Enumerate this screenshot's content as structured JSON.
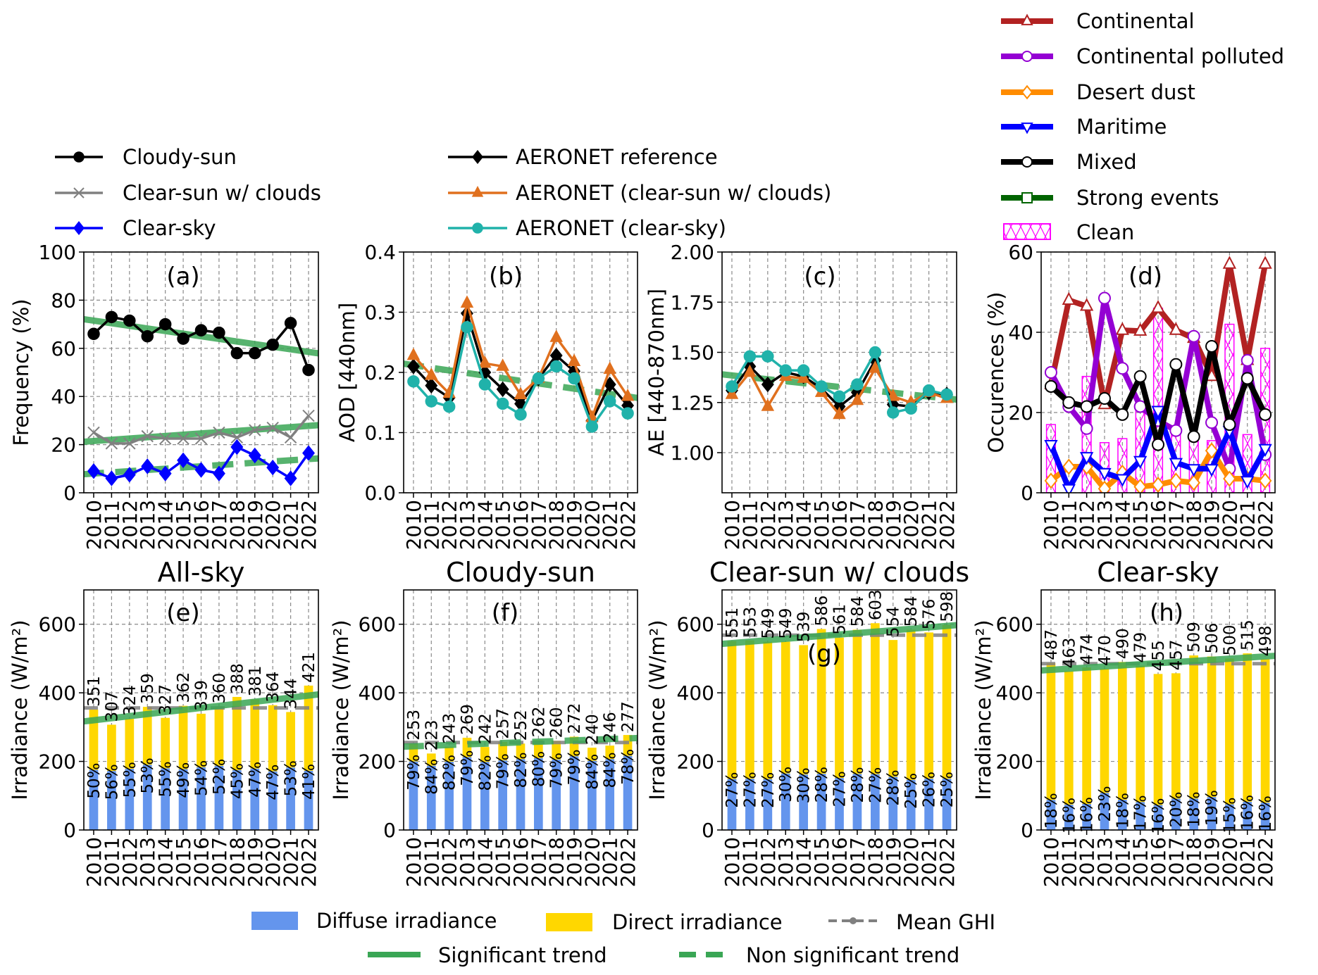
{
  "chart_data": [
    {
      "type": "line",
      "panel": "(a)",
      "title": "",
      "ylabel": "Frequency (%)",
      "x": [
        2010,
        2011,
        2012,
        2013,
        2014,
        2015,
        2016,
        2017,
        2018,
        2019,
        2020,
        2021,
        2022
      ],
      "ylim": [
        0,
        100
      ],
      "yticks": [
        0,
        20,
        40,
        60,
        80,
        100
      ],
      "yticklabels": [
        "0",
        "20",
        "40",
        "60",
        "80",
        "100"
      ],
      "grid": true,
      "legend_placement": "above-left",
      "series": [
        {
          "name": "Cloudy-sun",
          "color": "#000000",
          "marker": "circle",
          "values": [
            66,
            73,
            71.5,
            65,
            70,
            64,
            67.5,
            66.5,
            58,
            58,
            61.5,
            70.5,
            51
          ],
          "trend": {
            "start": 71.5,
            "end": 58.5,
            "significant": true
          }
        },
        {
          "name": "Clear-sun w/ clouds",
          "color": "#808080",
          "marker": "x",
          "values": [
            25,
            20.5,
            20.5,
            23.5,
            22.5,
            22.5,
            22.5,
            25,
            23,
            26,
            27,
            23,
            32
          ],
          "trend": {
            "start": 21.5,
            "end": 27.8,
            "significant": true
          }
        },
        {
          "name": "Clear-sky",
          "color": "#0000ff",
          "marker": "diamond",
          "values": [
            9,
            6,
            7.5,
            11,
            8,
            13.5,
            9.5,
            8,
            19,
            15.5,
            10.5,
            6,
            16.5
          ],
          "trend": {
            "start": 8,
            "end": 14,
            "significant": false
          }
        }
      ]
    },
    {
      "type": "line",
      "panel": "(b)",
      "title": "",
      "ylabel": "AOD [440nm]",
      "x": [
        2010,
        2011,
        2012,
        2013,
        2014,
        2015,
        2016,
        2017,
        2018,
        2019,
        2020,
        2021,
        2022
      ],
      "ylim": [
        0,
        0.4
      ],
      "yticks": [
        0,
        0.1,
        0.2,
        0.3,
        0.4
      ],
      "yticklabels": [
        "0.0",
        "0.1",
        "0.2",
        "0.3",
        "0.4"
      ],
      "grid": true,
      "legend_placement": "above",
      "series": [
        {
          "name": "AERONET reference",
          "color": "#000000",
          "marker": "diamond",
          "values": [
            0.21,
            0.178,
            0.158,
            0.298,
            0.2,
            0.172,
            0.148,
            0.19,
            0.228,
            0.202,
            0.12,
            0.18,
            0.145
          ],
          "trend": {
            "start": 0.212,
            "end": 0.16,
            "significant": false
          }
        },
        {
          "name": "AERONET (clear-sun w/ clouds)",
          "color": "#e0701e",
          "marker": "triangle-up",
          "values": [
            0.228,
            0.195,
            0.165,
            0.315,
            0.215,
            0.21,
            0.163,
            0.19,
            0.258,
            0.218,
            0.125,
            0.205,
            0.16
          ]
        },
        {
          "name": "AERONET (clear-sky)",
          "color": "#20b2aa",
          "marker": "circle",
          "values": [
            0.185,
            0.152,
            0.143,
            0.275,
            0.18,
            0.148,
            0.13,
            0.19,
            0.21,
            0.19,
            0.11,
            0.152,
            0.132
          ]
        }
      ]
    },
    {
      "type": "line",
      "panel": "(c)",
      "title": "",
      "ylabel": "AE [440-870nm]",
      "x": [
        2010,
        2011,
        2012,
        2013,
        2014,
        2015,
        2016,
        2017,
        2018,
        2019,
        2020,
        2021,
        2022
      ],
      "ylim": [
        0.8,
        2.0
      ],
      "yticks": [
        1.0,
        1.25,
        1.5,
        1.75,
        2.0
      ],
      "yticklabels": [
        "1.00",
        "1.25",
        "1.50",
        "1.75",
        "2.00"
      ],
      "grid": true,
      "series": [
        {
          "name": "AERONET reference",
          "color": "#000000",
          "marker": "diamond",
          "values": [
            1.31,
            1.43,
            1.34,
            1.4,
            1.38,
            1.32,
            1.23,
            1.3,
            1.46,
            1.24,
            1.23,
            1.3,
            1.29
          ],
          "trend": {
            "start": 1.385,
            "end": 1.27,
            "significant": false
          }
        },
        {
          "name": "AERONET (clear-sun w/ clouds)",
          "color": "#e0701e",
          "marker": "triangle-up",
          "values": [
            1.29,
            1.4,
            1.23,
            1.38,
            1.37,
            1.3,
            1.19,
            1.26,
            1.42,
            1.28,
            1.25,
            1.3,
            1.27
          ]
        },
        {
          "name": "AERONET (clear-sky)",
          "color": "#20b2aa",
          "marker": "circle",
          "values": [
            1.33,
            1.48,
            1.48,
            1.41,
            1.41,
            1.33,
            1.28,
            1.34,
            1.5,
            1.2,
            1.22,
            1.31,
            1.29
          ]
        }
      ]
    },
    {
      "type": "line",
      "panel": "(d)",
      "title": "",
      "ylabel": "Occurences (%)",
      "x": [
        2010,
        2011,
        2012,
        2013,
        2014,
        2015,
        2016,
        2017,
        2018,
        2019,
        2020,
        2021,
        2022
      ],
      "ylim": [
        0,
        60
      ],
      "yticks": [
        0,
        20,
        40,
        60
      ],
      "yticklabels": [
        "0",
        "20",
        "40",
        "60"
      ],
      "grid": true,
      "legend_placement": "top-right",
      "bars": {
        "name": "Clean",
        "color": "#ff00ff",
        "values": [
          17,
          0,
          29,
          12.5,
          13.5,
          21,
          46,
          15,
          14,
          13,
          42,
          14.5,
          36
        ]
      },
      "series": [
        {
          "name": "Continental",
          "color": "#b22222",
          "marker": "triangle-up",
          "values": [
            27,
            48,
            46.5,
            22,
            40.5,
            40.3,
            46,
            40.5,
            38.5,
            29,
            57,
            33,
            57
          ]
        },
        {
          "name": "Continental polluted",
          "color": "#9400d3",
          "marker": "circle",
          "values": [
            30,
            21.5,
            16,
            48.5,
            31,
            21.5,
            18,
            15.5,
            39,
            17.5,
            6,
            33,
            9.5
          ]
        },
        {
          "name": "Desert dust",
          "color": "#ff8c00",
          "marker": "diamond",
          "values": [
            3,
            6.5,
            6.5,
            1,
            5,
            1.5,
            2,
            3,
            2.5,
            10.5,
            3.5,
            3.5,
            3
          ]
        },
        {
          "name": "Maritime",
          "color": "#0000ff",
          "marker": "triangle-down",
          "values": [
            12,
            1,
            9,
            5,
            3.5,
            8,
            20.5,
            7.5,
            6,
            6,
            15.5,
            3,
            11
          ]
        },
        {
          "name": "Mixed",
          "color": "#000000",
          "marker": "circle",
          "values": [
            26.5,
            22.5,
            21.5,
            23.5,
            19.5,
            29,
            12,
            32,
            14,
            36.5,
            17,
            28.5,
            19.5
          ]
        }
      ],
      "legend_only": [
        {
          "name": "Strong events",
          "color": "#006400",
          "marker": "square"
        }
      ]
    },
    {
      "type": "bar",
      "stacked": true,
      "panel": "(e)",
      "title": "All-sky",
      "ylabel": "Irradiance (W/m²)",
      "x": [
        2010,
        2011,
        2012,
        2013,
        2014,
        2015,
        2016,
        2017,
        2018,
        2019,
        2020,
        2021,
        2022
      ],
      "ylim": [
        0,
        700
      ],
      "yticks": [
        0,
        200,
        400,
        600
      ],
      "yticklabels": [
        "0",
        "200",
        "400",
        "600"
      ],
      "grid": true,
      "totals": [
        351,
        307,
        324,
        359,
        327,
        362,
        339,
        360,
        388,
        381,
        364,
        344,
        421
      ],
      "total_labels": [
        "351",
        "307",
        "324",
        "359",
        "327",
        "362",
        "339",
        "360",
        "388",
        "381",
        "364",
        "344",
        "421"
      ],
      "diffuse_pct": [
        50,
        56,
        55,
        53,
        55,
        49,
        54,
        52,
        45,
        47,
        47,
        53,
        41
      ],
      "diffuse_labels": [
        "50%",
        "56%",
        "55%",
        "53%",
        "55%",
        "49%",
        "54%",
        "52%",
        "45%",
        "47%",
        "47%",
        "53%",
        "41%"
      ],
      "mean_ghi": 356,
      "trend": {
        "start": 320,
        "end": 392,
        "significant": true
      }
    },
    {
      "type": "bar",
      "stacked": true,
      "panel": "(f)",
      "title": "Cloudy-sun",
      "ylabel": "Irradiance (W/m²)",
      "x": [
        2010,
        2011,
        2012,
        2013,
        2014,
        2015,
        2016,
        2017,
        2018,
        2019,
        2020,
        2021,
        2022
      ],
      "ylim": [
        0,
        700
      ],
      "yticks": [
        0,
        200,
        400,
        600
      ],
      "yticklabels": [
        "0",
        "200",
        "400",
        "600"
      ],
      "grid": true,
      "totals": [
        253,
        223,
        243,
        269,
        242,
        257,
        252,
        262,
        260,
        272,
        240,
        246,
        277
      ],
      "total_labels": [
        "253",
        "223",
        "243",
        "269",
        "242",
        "257",
        "252",
        "262",
        "260",
        "272",
        "240",
        "246",
        "277"
      ],
      "diffuse_pct": [
        79,
        84,
        82,
        79,
        82,
        79,
        82,
        80,
        79,
        79,
        84,
        84,
        78
      ],
      "diffuse_labels": [
        "79%",
        "84%",
        "82%",
        "79%",
        "82%",
        "79%",
        "82%",
        "80%",
        "79%",
        "79%",
        "84%",
        "84%",
        "78%"
      ],
      "mean_ghi": 255,
      "trend": {
        "start": 244,
        "end": 267,
        "significant": false
      }
    },
    {
      "type": "bar",
      "stacked": true,
      "panel": "(g)",
      "title": "Clear-sun w/ clouds",
      "ylabel": "Irradiance (W/m²)",
      "x": [
        2010,
        2011,
        2012,
        2013,
        2014,
        2015,
        2016,
        2017,
        2018,
        2019,
        2020,
        2021,
        2022
      ],
      "ylim": [
        0,
        700
      ],
      "yticks": [
        0,
        200,
        400,
        600
      ],
      "yticklabels": [
        "0",
        "200",
        "400",
        "600"
      ],
      "grid": true,
      "totals": [
        551,
        553,
        549,
        549,
        539,
        586,
        561,
        584,
        603,
        554,
        584,
        576,
        598
      ],
      "total_labels": [
        "551",
        "553",
        "549",
        "549",
        "539",
        "586",
        "561",
        "584",
        "603",
        "554",
        "584",
        "576",
        "598"
      ],
      "diffuse_pct": [
        27,
        27,
        27,
        30,
        30,
        28,
        27,
        28,
        27,
        28,
        25,
        26,
        25
      ],
      "diffuse_labels": [
        "27%",
        "27%",
        "27%",
        "30%",
        "30%",
        "28%",
        "27%",
        "28%",
        "27%",
        "28%",
        "25%",
        "26%",
        "25%"
      ],
      "mean_ghi": 568,
      "trend": {
        "start": 545,
        "end": 595,
        "significant": true
      }
    },
    {
      "type": "bar",
      "stacked": true,
      "panel": "(h)",
      "title": "Clear-sky",
      "ylabel": "Irradiance (W/m²)",
      "x": [
        2010,
        2011,
        2012,
        2013,
        2014,
        2015,
        2016,
        2017,
        2018,
        2019,
        2020,
        2021,
        2022
      ],
      "ylim": [
        0,
        700
      ],
      "yticks": [
        0,
        200,
        400,
        600
      ],
      "yticklabels": [
        "0",
        "200",
        "400",
        "600"
      ],
      "grid": true,
      "totals": [
        487,
        463,
        474,
        470,
        490,
        479,
        455,
        457,
        509,
        506,
        500,
        515,
        498
      ],
      "total_labels": [
        "487",
        "463",
        "474",
        "470",
        "490",
        "479",
        "455",
        "457",
        "509",
        "506",
        "500",
        "515",
        "498"
      ],
      "diffuse_pct": [
        18,
        16,
        16,
        23,
        18,
        17,
        16,
        20,
        18,
        19,
        15,
        16,
        16
      ],
      "diffuse_labels": [
        "18%",
        "16%",
        "16%",
        "23%",
        "18%",
        "17%",
        "16%",
        "20%",
        "18%",
        "19%",
        "15%",
        "16%",
        "16%"
      ],
      "mean_ghi": 485,
      "trend": {
        "start": 467,
        "end": 506,
        "significant": true
      }
    }
  ],
  "shared_legend": {
    "diffuse": {
      "label": "Diffuse irradiance",
      "color": "#6495ed"
    },
    "direct": {
      "label": "Direct irradiance",
      "color": "#ffd700"
    },
    "mean": {
      "label": "Mean GHI",
      "color": "#808080"
    },
    "significant": {
      "label": "Significant trend",
      "color": "#3aa655"
    },
    "non_significant": {
      "label": "Non significant trend",
      "color": "#3aa655"
    }
  }
}
